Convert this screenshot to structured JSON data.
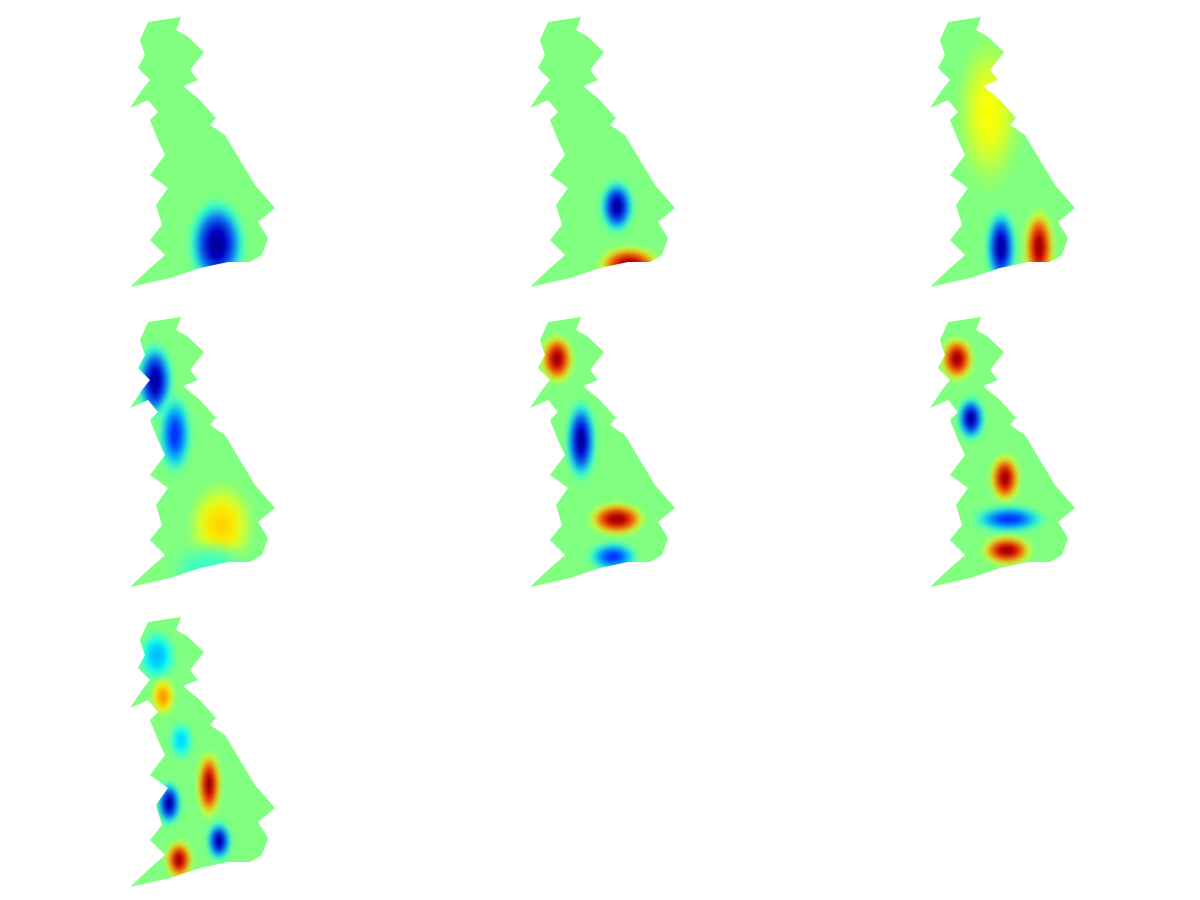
{
  "chart_data": {
    "type": "heatmap",
    "panels": [
      {
        "blobs": [
          {
            "x": 4.6,
            "y": 1.3,
            "sx": 1.0,
            "sy": 1.0,
            "a": -1.0
          }
        ]
      },
      {
        "blobs": [
          {
            "x": 4.6,
            "y": 2.5,
            "sx": 0.6,
            "sy": 0.6,
            "a": -1.0
          },
          {
            "x": 5.2,
            "y": 0.65,
            "sx": 1.1,
            "sy": 0.42,
            "a": 1.0
          }
        ]
      },
      {
        "blobs": [
          {
            "x": 3.8,
            "y": 1.2,
            "sx": 0.55,
            "sy": 0.85,
            "a": -1.0
          },
          {
            "x": 5.7,
            "y": 1.2,
            "sx": 0.55,
            "sy": 0.85,
            "a": 1.0
          },
          {
            "x": 3.2,
            "y": 5.5,
            "sx": 1.2,
            "sy": 1.8,
            "a": 0.25
          }
        ]
      },
      {
        "blobs": [
          {
            "x": 1.5,
            "y": 6.5,
            "sx": 0.65,
            "sy": 0.85,
            "a": -1.0
          },
          {
            "x": 2.5,
            "y": 4.8,
            "sx": 0.6,
            "sy": 0.9,
            "a": -0.7
          },
          {
            "x": 4.8,
            "y": 1.9,
            "sx": 1.2,
            "sy": 1.0,
            "a": 0.35
          },
          {
            "x": 4.2,
            "y": 0.5,
            "sx": 1.5,
            "sy": 0.6,
            "a": -0.15
          }
        ]
      },
      {
        "blobs": [
          {
            "x": 1.6,
            "y": 7.2,
            "sx": 0.6,
            "sy": 0.55,
            "a": 1.0
          },
          {
            "x": 2.8,
            "y": 4.6,
            "sx": 0.55,
            "sy": 0.9,
            "a": -1.0
          },
          {
            "x": 4.6,
            "y": 2.1,
            "sx": 1.0,
            "sy": 0.38,
            "a": 1.0
          },
          {
            "x": 4.4,
            "y": 0.9,
            "sx": 0.9,
            "sy": 0.35,
            "a": -0.7
          }
        ]
      },
      {
        "blobs": [
          {
            "x": 1.6,
            "y": 7.2,
            "sx": 0.6,
            "sy": 0.5,
            "a": 1.0
          },
          {
            "x": 2.3,
            "y": 5.3,
            "sx": 0.5,
            "sy": 0.5,
            "a": -1.0
          },
          {
            "x": 4.0,
            "y": 3.4,
            "sx": 0.55,
            "sy": 0.55,
            "a": 1.0
          },
          {
            "x": 4.2,
            "y": 2.1,
            "sx": 1.3,
            "sy": 0.32,
            "a": -0.7
          },
          {
            "x": 4.1,
            "y": 1.1,
            "sx": 0.9,
            "sy": 0.35,
            "a": 1.0
          }
        ]
      },
      {
        "blobs": [
          {
            "x": 1.6,
            "y": 7.3,
            "sx": 0.7,
            "sy": 0.6,
            "a": -0.4
          },
          {
            "x": 1.9,
            "y": 6.0,
            "sx": 0.45,
            "sy": 0.45,
            "a": 0.5
          },
          {
            "x": 2.8,
            "y": 4.6,
            "sx": 0.45,
            "sy": 0.45,
            "a": -0.35
          },
          {
            "x": 2.2,
            "y": 2.6,
            "sx": 0.45,
            "sy": 0.5,
            "a": -1.0
          },
          {
            "x": 4.2,
            "y": 3.2,
            "sx": 0.45,
            "sy": 0.75,
            "a": 1.0
          },
          {
            "x": 2.7,
            "y": 0.8,
            "sx": 0.5,
            "sy": 0.45,
            "a": 1.0
          },
          {
            "x": 4.7,
            "y": 1.4,
            "sx": 0.45,
            "sy": 0.45,
            "a": -1.0
          }
        ]
      }
    ]
  }
}
